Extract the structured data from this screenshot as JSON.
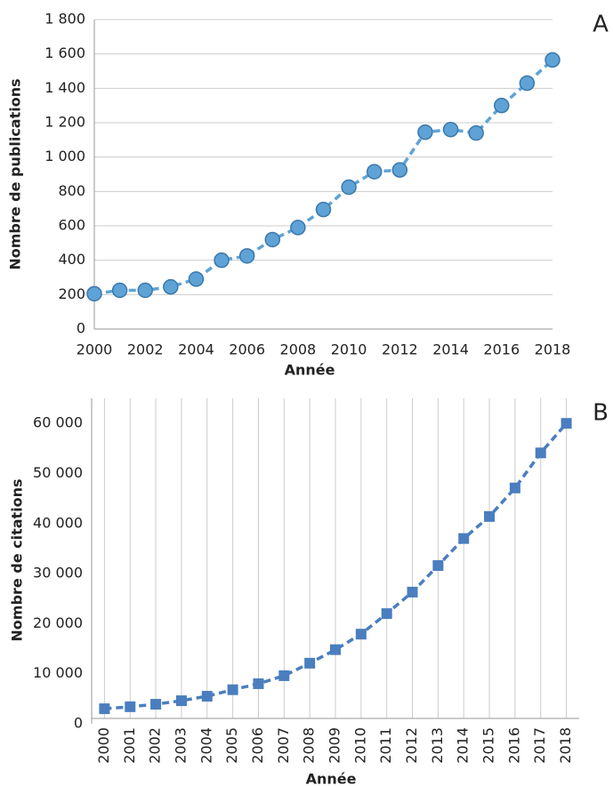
{
  "chart_data": [
    {
      "type": "line",
      "panel_label": "A",
      "x_label": "Année",
      "y_label": "Nombre de publications",
      "x": [
        2000,
        2001,
        2002,
        2003,
        2004,
        2005,
        2006,
        2007,
        2008,
        2009,
        2010,
        2011,
        2012,
        2013,
        2014,
        2015,
        2016,
        2017,
        2018
      ],
      "series": [
        {
          "name": "Publications",
          "color": "#5fa3d6",
          "values": [
            205,
            225,
            225,
            245,
            290,
            400,
            425,
            520,
            590,
            695,
            825,
            915,
            925,
            1145,
            1160,
            1140,
            1300,
            1430,
            1565
          ]
        }
      ],
      "xlim": [
        2000,
        2018
      ],
      "xticks": [
        2000,
        2002,
        2004,
        2006,
        2008,
        2010,
        2012,
        2014,
        2016,
        2018
      ],
      "ylim": [
        0,
        1800
      ],
      "yticks": [
        0,
        200,
        400,
        600,
        800,
        {
          "value": 1000,
          "label": "1 000"
        },
        {
          "value": 1200,
          "label": "1 200"
        },
        {
          "value": 1400,
          "label": "1 400"
        },
        {
          "value": 1600,
          "label": "1 600"
        },
        {
          "value": 1800,
          "label": "1 800"
        }
      ],
      "grid": "horizontal",
      "marker": "circle"
    },
    {
      "type": "line",
      "panel_label": "B",
      "x_label": "Année",
      "y_label": "Nombre de citations",
      "categories": [
        "2000",
        "2001",
        "2002",
        "2003",
        "2004",
        "2005",
        "2006",
        "2007",
        "2008",
        "2009",
        "2010",
        "2011",
        "2012",
        "2013",
        "2014",
        "2015",
        "2016",
        "2017",
        "2018"
      ],
      "series": [
        {
          "name": "Citations",
          "color": "#4a7ebf",
          "values": [
            3000,
            3400,
            3900,
            4600,
            5500,
            6800,
            8000,
            9600,
            12100,
            14800,
            17900,
            22000,
            26300,
            31600,
            37000,
            41400,
            47100,
            54100,
            60000
          ]
        }
      ],
      "ylim": [
        0,
        65000
      ],
      "yticks": [
        0,
        {
          "value": 10000,
          "label": "10 000"
        },
        {
          "value": 20000,
          "label": "20 000"
        },
        {
          "value": 30000,
          "label": "30 000"
        },
        {
          "value": 40000,
          "label": "40 000"
        },
        {
          "value": 50000,
          "label": "50 000"
        },
        {
          "value": 60000,
          "label": "60 000"
        }
      ],
      "grid": "vertical",
      "marker": "square"
    }
  ]
}
